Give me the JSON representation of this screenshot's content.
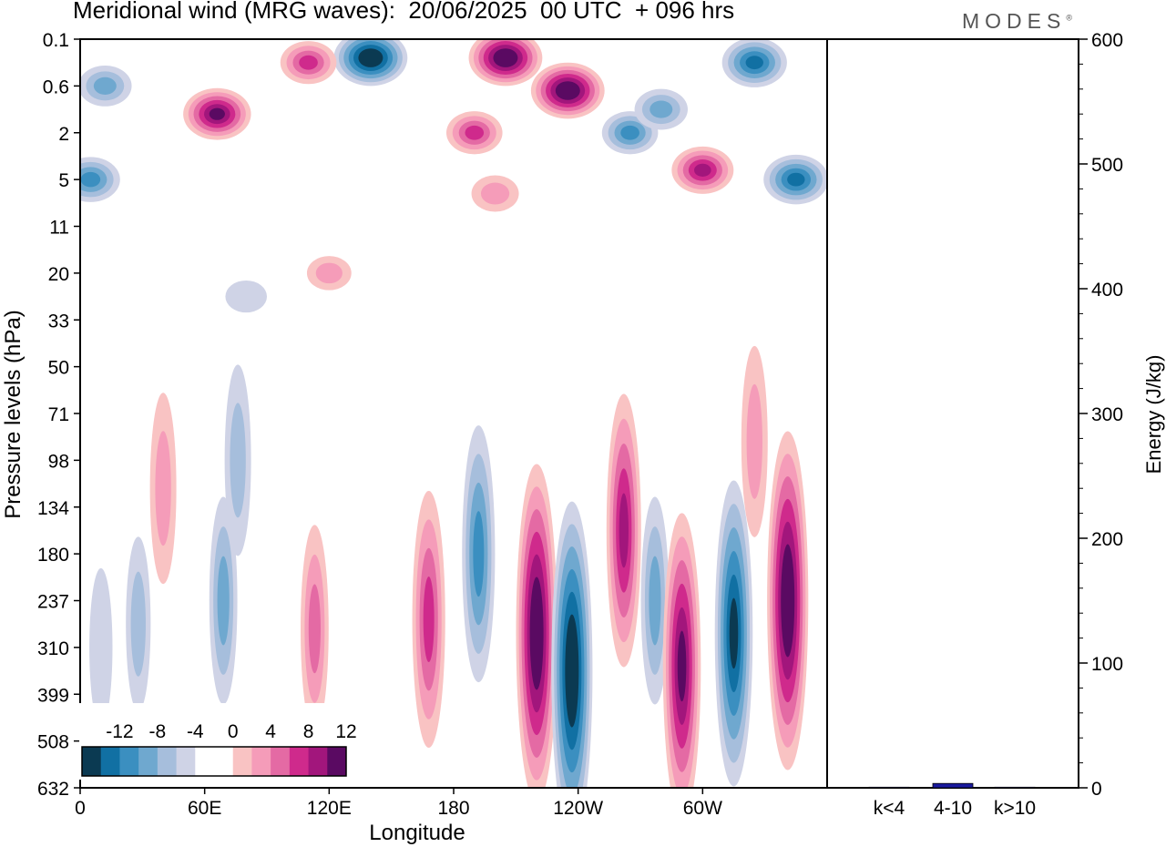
{
  "title": "Meridional wind (MRG waves):  20/06/2025  00 UTC  + 096 hrs",
  "brand": "MODES",
  "brand_mark": "®",
  "colors": {
    "scale": [
      "#0b3a52",
      "#1170a3",
      "#3b8fc0",
      "#6fa8cf",
      "#a6bedc",
      "#cfd3e6",
      "#ffffff",
      "#ffffff",
      "#f9c3c3",
      "#f59cb9",
      "#e46aa4",
      "#cf2a8c",
      "#a2167c",
      "#5a0a62"
    ],
    "frame": "#000000",
    "energy_bar": "#1a1a9e"
  },
  "chart_data": [
    {
      "type": "heatmap",
      "title": "Meridional wind (MRG waves):  20/06/2025  00 UTC  + 096 hrs",
      "xlabel": "Longitude",
      "ylabel": "Pressure levels (hPa)",
      "x_ticks": [
        "0",
        "60E",
        "120E",
        "180",
        "120W",
        "60W"
      ],
      "x_tick_values": [
        0,
        60,
        120,
        180,
        240,
        300
      ],
      "xlim": [
        0,
        360
      ],
      "y_ticks": [
        "0.1",
        "0.6",
        "2",
        "5",
        "11",
        "20",
        "33",
        "50",
        "71",
        "98",
        "134",
        "180",
        "237",
        "310",
        "399",
        "508",
        "632"
      ],
      "y_axis": "pressure, top 0.1 hPa to bottom 632 hPa",
      "colorbar": {
        "tick_labels": [
          "-12",
          "-8",
          "-4",
          "0",
          "4",
          "8",
          "12"
        ],
        "tick_values": [
          -12,
          -8,
          -4,
          0,
          4,
          8,
          12
        ],
        "range": [
          -14,
          14
        ],
        "step": 2
      },
      "features": [
        {
          "lon": 69,
          "level": 12.0,
          "value": -6
        },
        {
          "lon": 76,
          "level": 9.0,
          "value": -5
        },
        {
          "lon": 113,
          "level": 12.6,
          "value": 6
        },
        {
          "lon": 168,
          "level": 12.4,
          "value": 9
        },
        {
          "lon": 192,
          "level": 11.0,
          "value": -9
        },
        {
          "lon": 220,
          "level": 12.7,
          "value": 14
        },
        {
          "lon": 237,
          "level": 13.5,
          "value": -14
        },
        {
          "lon": 262,
          "level": 10.5,
          "value": 10
        },
        {
          "lon": 277,
          "level": 12.0,
          "value": -6
        },
        {
          "lon": 290,
          "level": 13.4,
          "value": 12
        },
        {
          "lon": 315,
          "level": 12.7,
          "value": -12
        },
        {
          "lon": 341,
          "level": 12.0,
          "value": 14
        },
        {
          "lon": 325,
          "level": 8.6,
          "value": 5
        },
        {
          "lon": 40,
          "level": 9.6,
          "value": 5
        },
        {
          "lon": 28,
          "level": 12.5,
          "value": -4
        },
        {
          "lon": 10,
          "level": 13.0,
          "value": -3
        },
        {
          "lon": 190,
          "level": 2.0,
          "value": 8
        },
        {
          "lon": 205,
          "level": 0.4,
          "value": 14
        },
        {
          "lon": 235,
          "level": 1.1,
          "value": 14
        },
        {
          "lon": 140,
          "level": 0.4,
          "value": -14
        },
        {
          "lon": 325,
          "level": 0.5,
          "value": -11
        },
        {
          "lon": 345,
          "level": 3.0,
          "value": -11
        },
        {
          "lon": 66,
          "level": 1.6,
          "value": 12
        },
        {
          "lon": 300,
          "level": 2.8,
          "value": 10
        },
        {
          "lon": 12,
          "level": 1.0,
          "value": -7
        },
        {
          "lon": 5,
          "level": 3.0,
          "value": -9
        },
        {
          "lon": 265,
          "level": 2.0,
          "value": -8
        },
        {
          "lon": 280,
          "level": 1.5,
          "value": -7
        },
        {
          "lon": 110,
          "level": 0.5,
          "value": 8
        },
        {
          "lon": 120,
          "level": 5.0,
          "value": 4
        },
        {
          "lon": 80,
          "level": 5.5,
          "value": -3
        },
        {
          "lon": 200,
          "level": 3.3,
          "value": 5
        }
      ]
    },
    {
      "type": "bar",
      "categories": [
        "k<4",
        "4-10",
        "k>10"
      ],
      "values": [
        0.5,
        3.5,
        0.5
      ],
      "ylabel": "Energy (J/kg)",
      "ylim": [
        0,
        600
      ],
      "y_ticks": [
        "0",
        "100",
        "200",
        "300",
        "400",
        "500",
        "600"
      ]
    }
  ]
}
